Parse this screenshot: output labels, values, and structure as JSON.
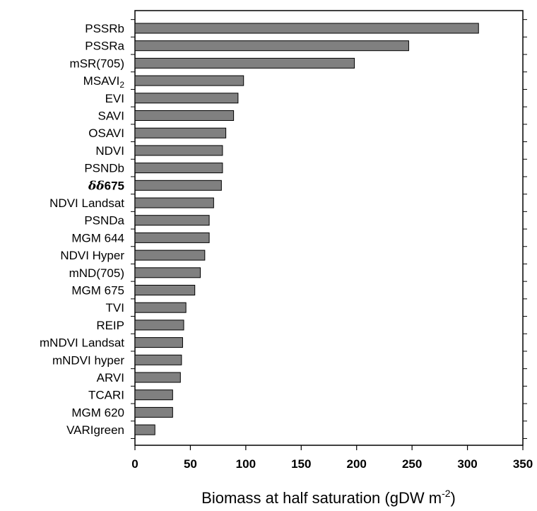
{
  "chart_data": {
    "type": "bar",
    "orientation": "horizontal",
    "categories": [
      "PSSRb",
      "PSSRa",
      "mSR(705)",
      "MSAVI2",
      "EVI",
      "SAVI",
      "OSAVI",
      "NDVI",
      "PSNDb",
      "δδ675",
      "NDVI Landsat",
      "PSNDa",
      "MGM 644",
      "NDVI Hyper",
      "mND(705)",
      "MGM 675",
      "TVI",
      "REIP",
      "mNDVI Landsat",
      "mNDVI hyper",
      "ARVI",
      "TCARI",
      "MGM 620",
      "VARIgreen"
    ],
    "values": [
      310,
      247,
      198,
      98,
      93,
      89,
      82,
      79,
      79,
      78,
      71,
      67,
      67,
      63,
      59,
      54,
      46,
      44,
      43,
      42,
      41,
      34,
      34,
      18
    ],
    "xlabel": "Biomass at half saturation (gDW m-2)",
    "xlim": [
      0,
      350
    ],
    "xticks": [
      0,
      50,
      100,
      150,
      200,
      250,
      300,
      350
    ],
    "bar_color": "#808080",
    "grid": false
  }
}
